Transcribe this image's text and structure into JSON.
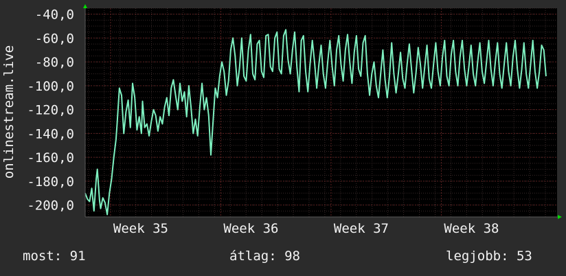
{
  "chart_data": {
    "type": "line",
    "ylabel": "onlinestream.live",
    "ylim": [
      -210,
      -35
    ],
    "yticks": [
      "-40,0",
      "-60,0",
      "-80,0",
      "-100,0",
      "-120,0",
      "-140,0",
      "-160,0",
      "-180,0",
      "-200,0"
    ],
    "ytick_values": [
      -40,
      -60,
      -80,
      -100,
      -120,
      -140,
      -160,
      -180,
      -200
    ],
    "xticks": [
      "Week 35",
      "Week 36",
      "Week 37",
      "Week 38"
    ],
    "xtick_values": [
      35,
      36,
      37,
      38
    ],
    "xlim": [
      34.77,
      39.05
    ],
    "grid": true,
    "colors": {
      "background": "#2b2b2b",
      "plot": "#000000",
      "line": "#7ef0c0",
      "grid": "#5a1f1f",
      "axis_arrow": "#00dd00",
      "text": "#f2f2f2"
    },
    "series": [
      {
        "values": [
          [
            34.77,
            -190
          ],
          [
            34.79,
            -195
          ],
          [
            34.81,
            -197
          ],
          [
            34.83,
            -186
          ],
          [
            34.85,
            -205
          ],
          [
            34.87,
            -178
          ],
          [
            34.88,
            -170
          ],
          [
            34.9,
            -196
          ],
          [
            34.91,
            -203
          ],
          [
            34.93,
            -194
          ],
          [
            34.95,
            -198
          ],
          [
            34.97,
            -208
          ],
          [
            34.99,
            -190
          ],
          [
            35.01,
            -178
          ],
          [
            35.03,
            -160
          ],
          [
            35.05,
            -145
          ],
          [
            35.06,
            -132
          ],
          [
            35.08,
            -102
          ],
          [
            35.1,
            -108
          ],
          [
            35.12,
            -140
          ],
          [
            35.14,
            -122
          ],
          [
            35.16,
            -112
          ],
          [
            35.18,
            -135
          ],
          [
            35.2,
            -98
          ],
          [
            35.22,
            -110
          ],
          [
            35.24,
            -137
          ],
          [
            35.26,
            -126
          ],
          [
            35.28,
            -140
          ],
          [
            35.29,
            -113
          ],
          [
            35.31,
            -135
          ],
          [
            35.33,
            -132
          ],
          [
            35.35,
            -142
          ],
          [
            35.37,
            -130
          ],
          [
            35.39,
            -120
          ],
          [
            35.41,
            -125
          ],
          [
            35.43,
            -138
          ],
          [
            35.45,
            -126
          ],
          [
            35.47,
            -132
          ],
          [
            35.49,
            -118
          ],
          [
            35.51,
            -110
          ],
          [
            35.53,
            -125
          ],
          [
            35.55,
            -102
          ],
          [
            35.57,
            -95
          ],
          [
            35.59,
            -108
          ],
          [
            35.61,
            -120
          ],
          [
            35.63,
            -98
          ],
          [
            35.65,
            -113
          ],
          [
            35.67,
            -105
          ],
          [
            35.69,
            -126
          ],
          [
            35.71,
            -100
          ],
          [
            35.73,
            -118
          ],
          [
            35.75,
            -140
          ],
          [
            35.77,
            -128
          ],
          [
            35.79,
            -142
          ],
          [
            35.81,
            -118
          ],
          [
            35.83,
            -98
          ],
          [
            35.85,
            -120
          ],
          [
            35.87,
            -110
          ],
          [
            35.89,
            -125
          ],
          [
            35.91,
            -158
          ],
          [
            35.93,
            -130
          ],
          [
            35.95,
            -102
          ],
          [
            35.97,
            -110
          ],
          [
            35.99,
            -92
          ],
          [
            36.01,
            -80
          ],
          [
            36.03,
            -88
          ],
          [
            36.05,
            -108
          ],
          [
            36.07,
            -96
          ],
          [
            36.09,
            -70
          ],
          [
            36.11,
            -60
          ],
          [
            36.13,
            -75
          ],
          [
            36.15,
            -100
          ],
          [
            36.17,
            -85
          ],
          [
            36.19,
            -60
          ],
          [
            36.21,
            -92
          ],
          [
            36.23,
            -96
          ],
          [
            36.25,
            -70
          ],
          [
            36.27,
            -57
          ],
          [
            36.29,
            -90
          ],
          [
            36.31,
            -95
          ],
          [
            36.33,
            -65
          ],
          [
            36.35,
            -62
          ],
          [
            36.37,
            -88
          ],
          [
            36.39,
            -93
          ],
          [
            36.41,
            -58
          ],
          [
            36.43,
            -57
          ],
          [
            36.45,
            -84
          ],
          [
            36.47,
            -88
          ],
          [
            36.49,
            -60
          ],
          [
            36.51,
            -55
          ],
          [
            36.53,
            -86
          ],
          [
            36.55,
            -90
          ],
          [
            36.57,
            -58
          ],
          [
            36.59,
            -53
          ],
          [
            36.61,
            -78
          ],
          [
            36.63,
            -90
          ],
          [
            36.65,
            -70
          ],
          [
            36.67,
            -55
          ],
          [
            36.69,
            -84
          ],
          [
            36.71,
            -105
          ],
          [
            36.73,
            -62
          ],
          [
            36.75,
            -58
          ],
          [
            36.77,
            -88
          ],
          [
            36.79,
            -105
          ],
          [
            36.81,
            -82
          ],
          [
            36.83,
            -62
          ],
          [
            36.85,
            -80
          ],
          [
            36.87,
            -102
          ],
          [
            36.89,
            -82
          ],
          [
            36.91,
            -66
          ],
          [
            36.93,
            -90
          ],
          [
            36.95,
            -102
          ],
          [
            36.97,
            -80
          ],
          [
            36.99,
            -62
          ],
          [
            37.01,
            -84
          ],
          [
            37.03,
            -100
          ],
          [
            37.05,
            -70
          ],
          [
            37.07,
            -58
          ],
          [
            37.09,
            -82
          ],
          [
            37.11,
            -96
          ],
          [
            37.13,
            -70
          ],
          [
            37.15,
            -57
          ],
          [
            37.17,
            -80
          ],
          [
            37.19,
            -98
          ],
          [
            37.21,
            -72
          ],
          [
            37.23,
            -58
          ],
          [
            37.25,
            -86
          ],
          [
            37.27,
            -92
          ],
          [
            37.29,
            -64
          ],
          [
            37.31,
            -58
          ],
          [
            37.33,
            -90
          ],
          [
            37.35,
            -108
          ],
          [
            37.37,
            -90
          ],
          [
            37.39,
            -80
          ],
          [
            37.41,
            -100
          ],
          [
            37.43,
            -110
          ],
          [
            37.45,
            -90
          ],
          [
            37.47,
            -70
          ],
          [
            37.49,
            -95
          ],
          [
            37.51,
            -110
          ],
          [
            37.53,
            -92
          ],
          [
            37.55,
            -64
          ],
          [
            37.57,
            -90
          ],
          [
            37.59,
            -106
          ],
          [
            37.61,
            -90
          ],
          [
            37.63,
            -72
          ],
          [
            37.65,
            -94
          ],
          [
            37.67,
            -102
          ],
          [
            37.69,
            -82
          ],
          [
            37.71,
            -65
          ],
          [
            37.73,
            -86
          ],
          [
            37.75,
            -106
          ],
          [
            37.77,
            -90
          ],
          [
            37.79,
            -68
          ],
          [
            37.81,
            -82
          ],
          [
            37.83,
            -102
          ],
          [
            37.85,
            -84
          ],
          [
            37.87,
            -66
          ],
          [
            37.89,
            -94
          ],
          [
            37.91,
            -102
          ],
          [
            37.93,
            -82
          ],
          [
            37.95,
            -64
          ],
          [
            37.97,
            -88
          ],
          [
            37.99,
            -100
          ],
          [
            38.01,
            -76
          ],
          [
            38.03,
            -62
          ],
          [
            38.05,
            -92
          ],
          [
            38.07,
            -100
          ],
          [
            38.09,
            -74
          ],
          [
            38.11,
            -62
          ],
          [
            38.13,
            -88
          ],
          [
            38.15,
            -100
          ],
          [
            38.17,
            -76
          ],
          [
            38.19,
            -62
          ],
          [
            38.21,
            -86
          ],
          [
            38.23,
            -100
          ],
          [
            38.25,
            -84
          ],
          [
            38.27,
            -66
          ],
          [
            38.29,
            -90
          ],
          [
            38.31,
            -100
          ],
          [
            38.33,
            -80
          ],
          [
            38.35,
            -64
          ],
          [
            38.37,
            -88
          ],
          [
            38.39,
            -98
          ],
          [
            38.41,
            -80
          ],
          [
            38.43,
            -62
          ],
          [
            38.45,
            -86
          ],
          [
            38.47,
            -100
          ],
          [
            38.49,
            -80
          ],
          [
            38.51,
            -64
          ],
          [
            38.53,
            -90
          ],
          [
            38.55,
            -102
          ],
          [
            38.57,
            -82
          ],
          [
            38.59,
            -64
          ],
          [
            38.61,
            -88
          ],
          [
            38.63,
            -100
          ],
          [
            38.65,
            -76
          ],
          [
            38.67,
            -62
          ],
          [
            38.69,
            -86
          ],
          [
            38.71,
            -102
          ],
          [
            38.73,
            -86
          ],
          [
            38.75,
            -64
          ],
          [
            38.77,
            -90
          ],
          [
            38.79,
            -102
          ],
          [
            38.81,
            -82
          ],
          [
            38.83,
            -62
          ],
          [
            38.85,
            -88
          ],
          [
            38.87,
            -102
          ],
          [
            38.89,
            -88
          ],
          [
            38.91,
            -66
          ],
          [
            38.93,
            -70
          ],
          [
            38.95,
            -92
          ]
        ]
      }
    ]
  },
  "footer": {
    "current": "most: 91",
    "average": "átlag: 98",
    "best": "legjobb: 53"
  }
}
